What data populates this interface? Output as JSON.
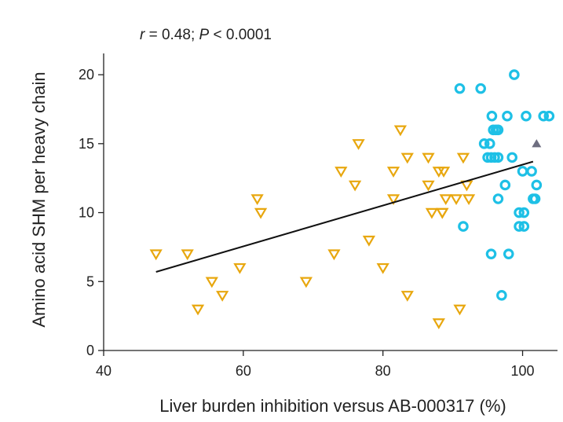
{
  "chart_data": {
    "type": "scatter",
    "title": "",
    "annotation": {
      "r_symbol": "r",
      "r_text": " = 0.48; ",
      "p_symbol": "P",
      "p_text": " < 0.0001"
    },
    "xlabel": "Liver burden inhibition versus AB-000317 (%)",
    "ylabel": "Amino acid SHM per heavy chain",
    "xlim": [
      40,
      105
    ],
    "ylim": [
      0,
      22
    ],
    "xticks": [
      40,
      60,
      80,
      100
    ],
    "yticks": [
      0,
      5,
      10,
      15,
      20
    ],
    "grid": false,
    "colors": {
      "orange": "#e8a70e",
      "cyan": "#1ec0e6",
      "gray": "#6e6e80",
      "line": "#111111"
    },
    "series": [
      {
        "marker": "triangle-down-open",
        "color": "#e8a70e",
        "points": [
          [
            47.5,
            7
          ],
          [
            52,
            7
          ],
          [
            53.5,
            3
          ],
          [
            55.5,
            5
          ],
          [
            57,
            4
          ],
          [
            59.5,
            6
          ],
          [
            62,
            11
          ],
          [
            62.5,
            10
          ],
          [
            69,
            5
          ],
          [
            73,
            7
          ],
          [
            74,
            13
          ],
          [
            76,
            12
          ],
          [
            76.5,
            15
          ],
          [
            78,
            8
          ],
          [
            80,
            6
          ],
          [
            81.5,
            13
          ],
          [
            81.5,
            11
          ],
          [
            82.5,
            16
          ],
          [
            83.5,
            4
          ],
          [
            83.5,
            14
          ],
          [
            86.5,
            14
          ],
          [
            86.5,
            12
          ],
          [
            87,
            10
          ],
          [
            88,
            13
          ],
          [
            88,
            2
          ],
          [
            88.5,
            10
          ],
          [
            88.5,
            10
          ],
          [
            88.7,
            13
          ],
          [
            89,
            11
          ],
          [
            90.5,
            11
          ],
          [
            91,
            3
          ],
          [
            91.5,
            14
          ],
          [
            92,
            12
          ],
          [
            92.3,
            11
          ]
        ]
      },
      {
        "marker": "circle-open",
        "color": "#1ec0e6",
        "points": [
          [
            91,
            19
          ],
          [
            91.5,
            9
          ],
          [
            94,
            19
          ],
          [
            94.5,
            15
          ],
          [
            95,
            14
          ],
          [
            95.3,
            15
          ],
          [
            95.5,
            14
          ],
          [
            95.5,
            7
          ],
          [
            95.6,
            17
          ],
          [
            95.8,
            16
          ],
          [
            96,
            14
          ],
          [
            96.2,
            16
          ],
          [
            96.5,
            16
          ],
          [
            96.5,
            11
          ],
          [
            96.5,
            14
          ],
          [
            97,
            4
          ],
          [
            97.5,
            12
          ],
          [
            97.8,
            17
          ],
          [
            98,
            7
          ],
          [
            98.5,
            14
          ],
          [
            98.8,
            20
          ],
          [
            99.5,
            9
          ],
          [
            99.5,
            10
          ],
          [
            100,
            13
          ],
          [
            100.2,
            9
          ],
          [
            100.2,
            10
          ],
          [
            100.5,
            17
          ],
          [
            101.3,
            13
          ],
          [
            101.5,
            11
          ],
          [
            101.8,
            11
          ],
          [
            102,
            12
          ],
          [
            103,
            17
          ],
          [
            103.8,
            17
          ]
        ]
      },
      {
        "marker": "triangle-up-filled",
        "color": "#6e6e80",
        "points": [
          [
            102,
            15
          ]
        ]
      }
    ],
    "regression_line": {
      "x": [
        47.5,
        101.5
      ],
      "y": [
        5.7,
        13.7
      ]
    }
  }
}
